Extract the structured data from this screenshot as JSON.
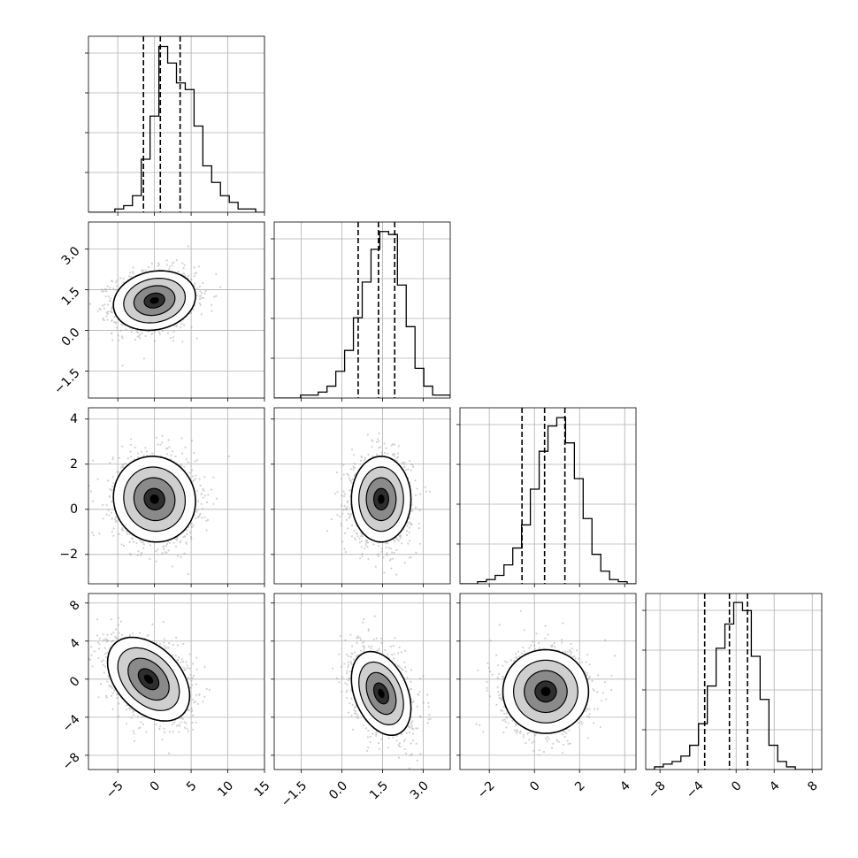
{
  "chart_data": {
    "type": "corner",
    "title": "",
    "grid": true,
    "colors": {
      "line": "#000000",
      "grid": "#b0b0b0",
      "scatter": "#9a9a9a",
      "background": "#ffffff"
    },
    "params": [
      {
        "range": [
          -9,
          15
        ],
        "ticks": [
          -5,
          0,
          5,
          10,
          15
        ],
        "tick_labels": [
          "−5",
          "0",
          "5",
          "10",
          "15"
        ],
        "mean": 1.0,
        "std": 2.8,
        "quantiles": [
          -1.5,
          0.8,
          3.5
        ],
        "hist_edges_start": -9,
        "hist_bin_width": 1.2,
        "hist": [
          0,
          0,
          0,
          1,
          2,
          5,
          16,
          29,
          50,
          45,
          39,
          37,
          26,
          14,
          9,
          5,
          3,
          1,
          1,
          0
        ],
        "hist_ymax": 52
      },
      {
        "range": [
          -2.5,
          4.0
        ],
        "ticks": [
          -1.5,
          0.0,
          1.5,
          3.0
        ],
        "tick_labels": [
          "−1.5",
          "0.0",
          "1.5",
          "3.0"
        ],
        "mean": 1.3,
        "std": 0.55,
        "quantiles": [
          0.6,
          1.35,
          1.95
        ],
        "hist_edges_start": -2.5,
        "hist_bin_width": 0.325,
        "hist": [
          0,
          0,
          0,
          1,
          1,
          2,
          4,
          9,
          16,
          27,
          39,
          50,
          56,
          55,
          38,
          24,
          10,
          4,
          1,
          1
        ],
        "hist_ymax": 58
      },
      {
        "range": [
          -3.3,
          4.5
        ],
        "ticks": [
          -2,
          0,
          2,
          4
        ],
        "tick_labels": [
          "−2",
          "0",
          "2",
          "4"
        ],
        "mean": 0.4,
        "std": 0.95,
        "quantiles": [
          -0.55,
          0.45,
          1.35
        ],
        "hist_edges_start": -3.3,
        "hist_bin_width": 0.39,
        "hist": [
          0,
          0,
          1,
          2,
          4,
          9,
          17,
          28,
          45,
          63,
          75,
          79,
          67,
          50,
          31,
          14,
          6,
          2,
          1,
          0
        ],
        "hist_ymax": 82
      },
      {
        "range": [
          -9.5,
          9.0
        ],
        "ticks": [
          -8,
          -4,
          0,
          4,
          8
        ],
        "tick_labels": [
          "−8",
          "−4",
          "0",
          "4",
          "8"
        ],
        "mean": -1.2,
        "std": 2.2,
        "quantiles": [
          -3.3,
          -0.7,
          1.2
        ],
        "hist_edges_start": -9.5,
        "hist_bin_width": 0.925,
        "hist": [
          0,
          1,
          2,
          3,
          5,
          9,
          17,
          31,
          45,
          54,
          62,
          59,
          42,
          26,
          9,
          3,
          1,
          0,
          0,
          0
        ],
        "hist_ymax": 64
      }
    ],
    "pairs": [
      {
        "row": 1,
        "col": 0,
        "rho": 0.15,
        "mode_x": 0.0,
        "mode_y": 1.1
      },
      {
        "row": 2,
        "col": 0,
        "rho": -0.05,
        "mode_x": 0.0,
        "mode_y": 0.45
      },
      {
        "row": 2,
        "col": 1,
        "rho": 0.0,
        "mode_x": 1.45,
        "mode_y": 0.45
      },
      {
        "row": 3,
        "col": 0,
        "rho": -0.4,
        "mode_x": -0.8,
        "mode_y": 0.0
      },
      {
        "row": 3,
        "col": 1,
        "rho": -0.35,
        "mode_x": 1.45,
        "mode_y": -1.5
      },
      {
        "row": 3,
        "col": 2,
        "rho": 0.0,
        "mode_x": 0.5,
        "mode_y": -1.3
      }
    ],
    "contour_levels_sigma": [
      0.5,
      1.0,
      1.5,
      2.0
    ]
  }
}
